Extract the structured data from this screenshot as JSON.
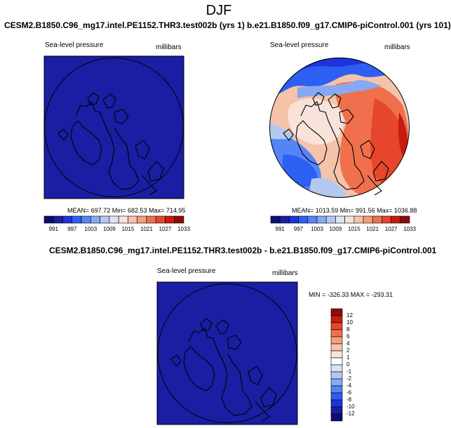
{
  "page": {
    "title": "DJF",
    "colors": {
      "background": "#ffffff",
      "uniform_fill": "#1a1ea3",
      "land_outline": "#000000"
    }
  },
  "chart_data": [
    {
      "type": "heatmap",
      "projection": "north-polar-stereographic",
      "title": "CESM2.B1850.C96_mg17.intel.PE1152.THR3.test002b (yrs 1)",
      "left_label": "Sea-level pressure",
      "right_label": "millibars",
      "stats_text": "MEAN= 697.72  Min= 682.53  Max= 714.95",
      "mean": 697.72,
      "min": 682.53,
      "max": 714.95,
      "field": "uniform below colorbar minimum",
      "colorbar": {
        "orientation": "horizontal",
        "levels": [
          "991",
          "997",
          "1003",
          "1009",
          "1015",
          "1021",
          "1027",
          "1033"
        ],
        "colors": [
          "#0b0e73",
          "#1a1ea3",
          "#1f35d9",
          "#2d5ff2",
          "#5585f5",
          "#86a9f2",
          "#b3c8f0",
          "#dae4f5",
          "#f7e3d9",
          "#f5c3aa",
          "#f59d7c",
          "#f0704e",
          "#e6462c",
          "#c91b12",
          "#8f0a0a"
        ]
      }
    },
    {
      "type": "heatmap",
      "projection": "north-polar-stereographic",
      "title": "b.e21.B1850.f09_g17.CMIP6-piControl.001 (yrs 101)",
      "left_label": "Sea-level pressure",
      "right_label": "millibars",
      "stats_text": "MEAN= 1013.59  Min= 991.56  Max= 1036.88",
      "mean": 1013.59,
      "min": 991.56,
      "max": 1036.88,
      "field": "high pressure over Siberia and Arctic, low pressure over North Pacific and North Atlantic",
      "colorbar": {
        "orientation": "horizontal",
        "levels": [
          "991",
          "997",
          "1003",
          "1009",
          "1015",
          "1021",
          "1027",
          "1033"
        ],
        "colors": [
          "#0b0e73",
          "#1a1ea3",
          "#1f35d9",
          "#2d5ff2",
          "#5585f5",
          "#86a9f2",
          "#b3c8f0",
          "#dae4f5",
          "#f7e3d9",
          "#f5c3aa",
          "#f59d7c",
          "#f0704e",
          "#e6462c",
          "#c91b12",
          "#8f0a0a"
        ]
      }
    },
    {
      "type": "heatmap",
      "projection": "north-polar-stereographic",
      "title": "CESM2.B1850.C96_mg17.intel.PE1152.THR3.test002b - b.e21.B1850.f09_g17.CMIP6-piControl.001",
      "left_label": "Sea-level pressure",
      "right_label": "millibars",
      "stats_text": "MIN = -326.33  MAX = -293.31",
      "min": -326.33,
      "max": -293.31,
      "field": "uniform below colorbar minimum",
      "colorbar": {
        "orientation": "vertical",
        "levels": [
          "12",
          "10",
          "8",
          "6",
          "4",
          "2",
          "1",
          "0",
          "-1",
          "-2",
          "-4",
          "-6",
          "-8",
          "-10",
          "-12"
        ],
        "colors": [
          "#8f0a0a",
          "#c91b12",
          "#e6462c",
          "#f0704e",
          "#f59d7c",
          "#f5c3aa",
          "#f7e3d9",
          "#ffffff",
          "#dae4f5",
          "#b3c8f0",
          "#86a9f2",
          "#5585f5",
          "#2d5ff2",
          "#1f35d9",
          "#1a1ea3",
          "#0b0e73"
        ]
      }
    }
  ]
}
